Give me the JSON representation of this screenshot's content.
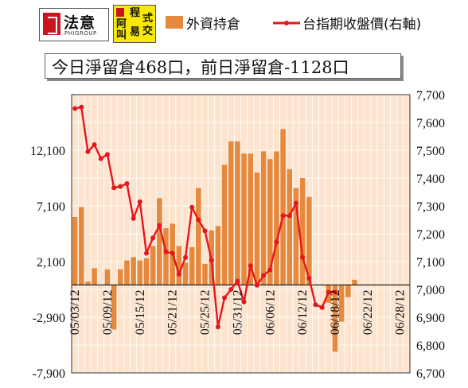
{
  "logos": {
    "left_main": "法意",
    "left_sub": "PHIGROUP",
    "right_chars": [
      "阿",
      "程",
      "式",
      "叫",
      "易",
      "交"
    ]
  },
  "legend": {
    "bar_label": "外資持倉",
    "line_label": "台指期收盤價(右軸)"
  },
  "title": "今日淨留倉468口，前日淨留倉-1128口",
  "colors": {
    "bar": "#e4893d",
    "line": "#e8161b",
    "plot_bg": "#fde4cf",
    "grid": "#ffffff"
  },
  "chart_data": {
    "type": "bar+line",
    "x_tick_labels": [
      "05/03/12",
      "05/09/12",
      "05/15/12",
      "05/21/12",
      "05/25/12",
      "05/31/12",
      "06/06/12",
      "06/12/12",
      "06/18/12",
      "06/22/12",
      "06/28/12"
    ],
    "x_tick_indices": [
      0,
      5,
      10,
      15,
      20,
      25,
      30,
      35,
      40,
      45,
      50
    ],
    "y_left": {
      "ticks": [
        -7900,
        -2900,
        2100,
        7100,
        12100
      ],
      "lim": [
        -7900,
        17100
      ],
      "label": ""
    },
    "y_right": {
      "ticks": [
        6700,
        6800,
        6900,
        7000,
        7100,
        7200,
        7300,
        7400,
        7500,
        7600,
        7700
      ],
      "lim": [
        6700,
        7700
      ],
      "label": ""
    },
    "series": [
      {
        "name": "外資持倉",
        "kind": "bar",
        "axis": "left",
        "values": [
          6100,
          7000,
          300,
          1500,
          0,
          1400,
          -4000,
          1400,
          2200,
          2500,
          2200,
          2400,
          3500,
          7800,
          5100,
          5500,
          3500,
          2000,
          3400,
          8700,
          1900,
          4900,
          5300,
          10800,
          12900,
          12900,
          11800,
          11800,
          10100,
          12000,
          11300,
          12000,
          14000,
          10400,
          8700,
          9600,
          7900,
          0,
          0,
          -1600,
          -6000,
          -3300,
          -1100,
          468
        ]
      },
      {
        "name": "台指期收盤價(右軸)",
        "kind": "line",
        "axis": "right",
        "values": [
          7650,
          7655,
          7495,
          7520,
          7470,
          7485,
          7365,
          7370,
          7380,
          7255,
          7315,
          7130,
          7185,
          7230,
          7135,
          7130,
          7055,
          7115,
          7295,
          7250,
          7210,
          7105,
          6865,
          6970,
          7000,
          7030,
          6955,
          7085,
          7015,
          7050,
          7070,
          7170,
          7265,
          7265,
          7310,
          7115,
          7040,
          6945,
          6935,
          6990,
          6990
        ]
      }
    ],
    "grid": true,
    "legend_position": "top"
  }
}
